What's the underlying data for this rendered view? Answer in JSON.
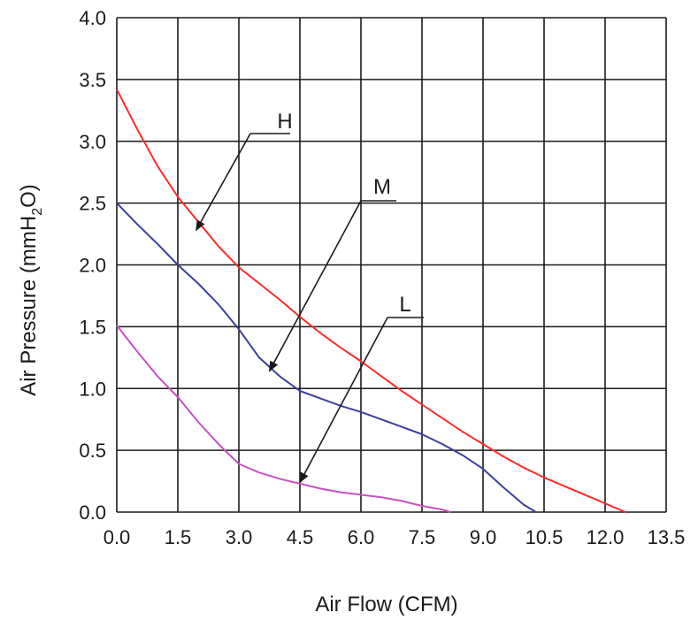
{
  "chart_data": {
    "type": "line",
    "xlabel": "Air Flow (CFM)",
    "ylabel_main": "Air Pressure (mmH",
    "ylabel_sub": "2",
    "ylabel_end": "O)",
    "xlim": [
      0,
      13.5
    ],
    "ylim": [
      0,
      4.0
    ],
    "grid": true,
    "x_ticks": [
      "0.0",
      "1.5",
      "3.0",
      "4.5",
      "6.0",
      "7.5",
      "9.0",
      "10.5",
      "12.0",
      "13.5"
    ],
    "y_ticks": [
      "0.0",
      "0.5",
      "1.0",
      "1.5",
      "2.0",
      "2.5",
      "3.0",
      "3.5",
      "4.0"
    ],
    "series": [
      {
        "name": "H",
        "color": "#ff2a2a",
        "points": [
          [
            0,
            3.42
          ],
          [
            0.5,
            3.1
          ],
          [
            1.0,
            2.8
          ],
          [
            1.5,
            2.55
          ],
          [
            2.0,
            2.35
          ],
          [
            2.5,
            2.15
          ],
          [
            3.0,
            1.98
          ],
          [
            3.5,
            1.85
          ],
          [
            4.0,
            1.72
          ],
          [
            4.5,
            1.58
          ],
          [
            5.0,
            1.45
          ],
          [
            5.5,
            1.33
          ],
          [
            6.0,
            1.22
          ],
          [
            6.5,
            1.1
          ],
          [
            7.0,
            0.98
          ],
          [
            7.5,
            0.87
          ],
          [
            8.0,
            0.76
          ],
          [
            8.5,
            0.65
          ],
          [
            9.0,
            0.55
          ],
          [
            9.5,
            0.45
          ],
          [
            10.0,
            0.36
          ],
          [
            10.5,
            0.28
          ],
          [
            11.0,
            0.21
          ],
          [
            11.5,
            0.14
          ],
          [
            12.0,
            0.07
          ],
          [
            12.5,
            0.0
          ]
        ]
      },
      {
        "name": "M",
        "color": "#3b3f9e",
        "points": [
          [
            0,
            2.5
          ],
          [
            0.5,
            2.33
          ],
          [
            1.0,
            2.17
          ],
          [
            1.5,
            2.0
          ],
          [
            2.0,
            1.85
          ],
          [
            2.5,
            1.68
          ],
          [
            3.0,
            1.48
          ],
          [
            3.5,
            1.25
          ],
          [
            4.0,
            1.1
          ],
          [
            4.5,
            0.98
          ],
          [
            5.0,
            0.92
          ],
          [
            5.5,
            0.86
          ],
          [
            6.0,
            0.81
          ],
          [
            6.5,
            0.75
          ],
          [
            7.0,
            0.69
          ],
          [
            7.5,
            0.63
          ],
          [
            8.0,
            0.55
          ],
          [
            8.5,
            0.46
          ],
          [
            9.0,
            0.35
          ],
          [
            9.5,
            0.2
          ],
          [
            10.0,
            0.06
          ],
          [
            10.3,
            0.0
          ]
        ]
      },
      {
        "name": "L",
        "color": "#c84fc0",
        "points": [
          [
            0,
            1.51
          ],
          [
            0.5,
            1.3
          ],
          [
            1.0,
            1.1
          ],
          [
            1.5,
            0.93
          ],
          [
            2.0,
            0.73
          ],
          [
            2.5,
            0.55
          ],
          [
            3.0,
            0.39
          ],
          [
            3.5,
            0.32
          ],
          [
            4.0,
            0.27
          ],
          [
            4.5,
            0.23
          ],
          [
            5.0,
            0.19
          ],
          [
            5.5,
            0.16
          ],
          [
            6.0,
            0.14
          ],
          [
            6.5,
            0.12
          ],
          [
            7.0,
            0.09
          ],
          [
            7.5,
            0.05
          ],
          [
            8.0,
            0.02
          ],
          [
            8.2,
            0.0
          ]
        ]
      }
    ],
    "annotations": [
      {
        "label": "H",
        "points_to": [
          1.95,
          2.28
        ]
      },
      {
        "label": "M",
        "points_to": [
          3.75,
          1.14
        ]
      },
      {
        "label": "L",
        "points_to": [
          4.5,
          0.24
        ]
      }
    ]
  }
}
